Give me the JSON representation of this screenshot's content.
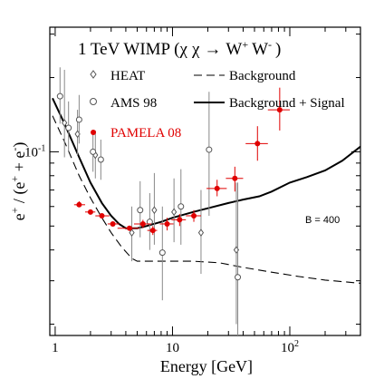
{
  "chart_data": {
    "type": "scatter",
    "title": "1 TeV WIMP (χ χ → W⁺ W⁻ )",
    "title_parts": {
      "prefix": "1 TeV WIMP (",
      "chi1": "χ",
      "chi2": "χ",
      "arrow": "→",
      "w1": "W",
      "w1_sup": "+",
      "w2": "W",
      "w2_sup": "-",
      "suffix": ")"
    },
    "xlabel": "Energy [GeV]",
    "ylabel": "e⁺ / (e⁺ + e⁻)",
    "ylabel_parts": {
      "e1": "e",
      "s1": "+",
      "mid": " / (e",
      "s2": "+",
      "plus": " + e",
      "s3": "-",
      "close": ")"
    },
    "x_scale": "log",
    "y_scale": "log",
    "xlim": [
      0.9,
      400
    ],
    "ylim": [
      0.018,
      0.32
    ],
    "x_ticklabels": [
      {
        "x": 1,
        "label": "1"
      },
      {
        "x": 10,
        "label": "10"
      },
      {
        "x": 100,
        "label": "10",
        "sup": "2"
      }
    ],
    "y_ticklabels": [
      {
        "y": 0.1,
        "label": "10",
        "sup": "-1"
      }
    ],
    "annotation": "B = 400",
    "legend": {
      "position": "top",
      "entries": [
        {
          "label": "HEAT",
          "marker": "diamond",
          "color": "#555555"
        },
        {
          "label": "AMS 98",
          "marker": "open-circle",
          "color": "#555555"
        },
        {
          "label": "PAMELA 08",
          "marker": "filled-circle",
          "color": "#e00000"
        },
        {
          "label": "Background",
          "line": "dashed",
          "color": "#000000"
        },
        {
          "label": "Background + Signal",
          "line": "solid",
          "color": "#000000"
        }
      ]
    },
    "series": [
      {
        "name": "HEAT",
        "marker": "diamond",
        "color": "#555555",
        "points": [
          {
            "x": 1.2,
            "y": 0.131,
            "ylo": 0.095,
            "yhi": 0.215
          },
          {
            "x": 1.55,
            "y": 0.118,
            "ylo": 0.097,
            "yhi": 0.148
          },
          {
            "x": 2.2,
            "y": 0.097,
            "ylo": 0.078,
            "yhi": 0.122
          },
          {
            "x": 4.5,
            "y": 0.047,
            "ylo": 0.036,
            "yhi": 0.06
          },
          {
            "x": 7.0,
            "y": 0.058,
            "ylo": 0.042,
            "yhi": 0.082
          },
          {
            "x": 10.3,
            "y": 0.057,
            "ylo": 0.043,
            "yhi": 0.078
          },
          {
            "x": 17.5,
            "y": 0.047,
            "ylo": 0.032,
            "yhi": 0.07
          },
          {
            "x": 35.0,
            "y": 0.04,
            "ylo": 0.02,
            "yhi": 0.075
          }
        ]
      },
      {
        "name": "AMS 98",
        "marker": "open-circle",
        "color": "#555555",
        "points": [
          {
            "x": 1.1,
            "y": 0.168,
            "ylo": 0.13,
            "yhi": 0.22
          },
          {
            "x": 1.3,
            "y": 0.125,
            "ylo": 0.1,
            "yhi": 0.16
          },
          {
            "x": 1.6,
            "y": 0.135,
            "ylo": 0.108,
            "yhi": 0.17
          },
          {
            "x": 2.1,
            "y": 0.1,
            "ylo": 0.083,
            "yhi": 0.122
          },
          {
            "x": 2.45,
            "y": 0.093,
            "ylo": 0.077,
            "yhi": 0.112
          },
          {
            "x": 5.3,
            "y": 0.058,
            "ylo": 0.045,
            "yhi": 0.076
          },
          {
            "x": 6.4,
            "y": 0.052,
            "ylo": 0.04,
            "yhi": 0.068
          },
          {
            "x": 8.2,
            "y": 0.039,
            "ylo": 0.025,
            "yhi": 0.06
          },
          {
            "x": 11.8,
            "y": 0.06,
            "ylo": 0.042,
            "yhi": 0.085
          },
          {
            "x": 20.5,
            "y": 0.102,
            "ylo": 0.055,
            "yhi": 0.175
          },
          {
            "x": 36.0,
            "y": 0.031,
            "ylo": 0.018,
            "yhi": 0.075
          }
        ]
      },
      {
        "name": "PAMELA 08",
        "marker": "filled-circle",
        "color": "#e00000",
        "points": [
          {
            "x": 1.6,
            "y": 0.061,
            "ylo": 0.06,
            "yhi": 0.063,
            "xlo": 1.45,
            "xhi": 1.8
          },
          {
            "x": 2.0,
            "y": 0.057,
            "ylo": 0.056,
            "yhi": 0.058,
            "xlo": 1.8,
            "xhi": 2.2
          },
          {
            "x": 2.5,
            "y": 0.055,
            "ylo": 0.054,
            "yhi": 0.056,
            "xlo": 2.2,
            "xhi": 2.9
          },
          {
            "x": 3.1,
            "y": 0.051,
            "ylo": 0.05,
            "yhi": 0.052,
            "xlo": 2.8,
            "xhi": 3.5
          },
          {
            "x": 4.3,
            "y": 0.049,
            "ylo": 0.048,
            "yhi": 0.05,
            "xlo": 3.4,
            "xhi": 5.2
          },
          {
            "x": 5.6,
            "y": 0.051,
            "ylo": 0.049,
            "yhi": 0.053,
            "xlo": 4.7,
            "xhi": 6.6
          },
          {
            "x": 6.8,
            "y": 0.048,
            "ylo": 0.046,
            "yhi": 0.05,
            "xlo": 6.1,
            "xhi": 7.4
          },
          {
            "x": 9.0,
            "y": 0.051,
            "ylo": 0.048,
            "yhi": 0.054,
            "xlo": 7.8,
            "xhi": 10.2
          },
          {
            "x": 11.5,
            "y": 0.053,
            "ylo": 0.05,
            "yhi": 0.056,
            "xlo": 9.8,
            "xhi": 13.0
          },
          {
            "x": 15.2,
            "y": 0.055,
            "ylo": 0.052,
            "yhi": 0.058,
            "xlo": 13.0,
            "xhi": 17.5
          },
          {
            "x": 24.0,
            "y": 0.071,
            "ylo": 0.066,
            "yhi": 0.077,
            "xlo": 19.5,
            "xhi": 29.0
          },
          {
            "x": 34.0,
            "y": 0.078,
            "ylo": 0.069,
            "yhi": 0.087,
            "xlo": 28.5,
            "xhi": 40.0
          },
          {
            "x": 53.0,
            "y": 0.108,
            "ylo": 0.092,
            "yhi": 0.127,
            "xlo": 42.0,
            "xhi": 65.0
          },
          {
            "x": 82.0,
            "y": 0.148,
            "ylo": 0.122,
            "yhi": 0.182,
            "xlo": 65.0,
            "xhi": 100.0
          }
        ]
      },
      {
        "name": "Background",
        "line": "dashed",
        "color": "#000000",
        "points": [
          {
            "x": 0.95,
            "y": 0.14
          },
          {
            "x": 1.2,
            "y": 0.11
          },
          {
            "x": 1.6,
            "y": 0.08
          },
          {
            "x": 2.0,
            "y": 0.065
          },
          {
            "x": 2.5,
            "y": 0.054
          },
          {
            "x": 3.0,
            "y": 0.047
          },
          {
            "x": 3.7,
            "y": 0.041
          },
          {
            "x": 4.5,
            "y": 0.037
          },
          {
            "x": 5.0,
            "y": 0.036
          },
          {
            "x": 7.0,
            "y": 0.036
          },
          {
            "x": 10.0,
            "y": 0.036
          },
          {
            "x": 15.0,
            "y": 0.036
          },
          {
            "x": 25.0,
            "y": 0.0355
          },
          {
            "x": 40.0,
            "y": 0.034
          },
          {
            "x": 70.0,
            "y": 0.0325
          },
          {
            "x": 120.0,
            "y": 0.0312
          },
          {
            "x": 200.0,
            "y": 0.0302
          },
          {
            "x": 400.0,
            "y": 0.0293
          }
        ]
      },
      {
        "name": "Background + Signal",
        "line": "solid",
        "color": "#000000",
        "points": [
          {
            "x": 0.95,
            "y": 0.165
          },
          {
            "x": 1.2,
            "y": 0.13
          },
          {
            "x": 1.6,
            "y": 0.095
          },
          {
            "x": 2.0,
            "y": 0.075
          },
          {
            "x": 2.5,
            "y": 0.062
          },
          {
            "x": 3.0,
            "y": 0.055
          },
          {
            "x": 3.5,
            "y": 0.051
          },
          {
            "x": 4.0,
            "y": 0.049
          },
          {
            "x": 5.0,
            "y": 0.049
          },
          {
            "x": 6.0,
            "y": 0.05
          },
          {
            "x": 8.0,
            "y": 0.052
          },
          {
            "x": 10.0,
            "y": 0.054
          },
          {
            "x": 15.0,
            "y": 0.057
          },
          {
            "x": 20.0,
            "y": 0.059
          },
          {
            "x": 30.0,
            "y": 0.062
          },
          {
            "x": 40.0,
            "y": 0.064
          },
          {
            "x": 55.0,
            "y": 0.066
          },
          {
            "x": 70.0,
            "y": 0.069
          },
          {
            "x": 100.0,
            "y": 0.075
          },
          {
            "x": 140.0,
            "y": 0.079
          },
          {
            "x": 200.0,
            "y": 0.084
          },
          {
            "x": 280.0,
            "y": 0.092
          },
          {
            "x": 400.0,
            "y": 0.105
          }
        ]
      }
    ]
  }
}
